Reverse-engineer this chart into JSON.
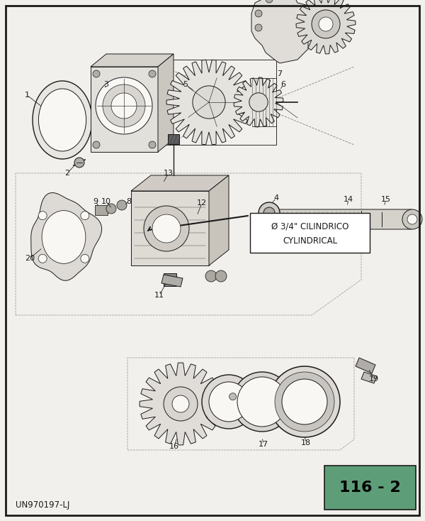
{
  "bg_color": "#f2f0ec",
  "border_color": "#1a1a1a",
  "title_box_color": "#5d9e78",
  "title_text": "116 - 2",
  "footer_text": "UN970197-LJ",
  "annotation_text1": "Ø 3/4\" CILINDRICO",
  "annotation_text2": "CYLINDRICAL",
  "lc": "#1a1a1a",
  "lw": 0.7,
  "diagram_bg": "#f8f7f4"
}
